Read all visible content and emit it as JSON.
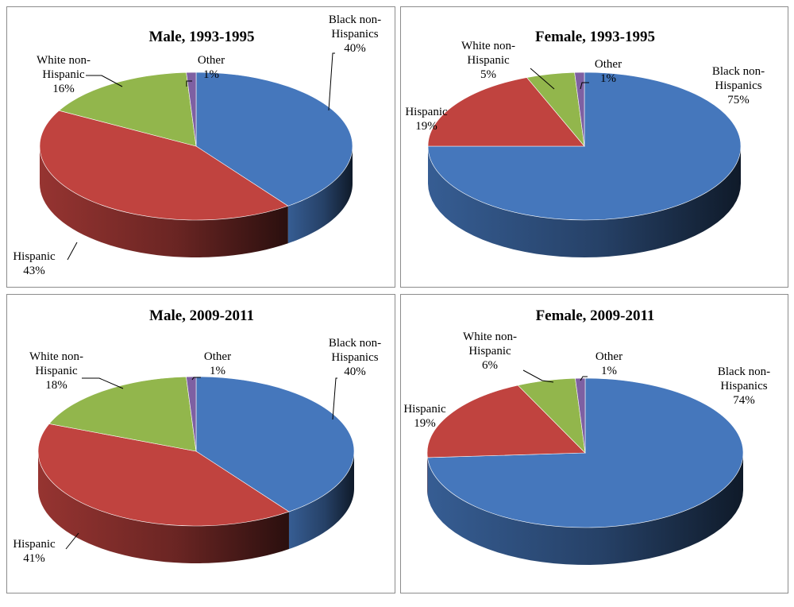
{
  "colors": {
    "Black non-Hispanics": "#4577BC",
    "Hispanic": "#C0433F",
    "White non-Hispanic": "#92B64C",
    "Other": "#7E60A2"
  },
  "chart_data": [
    {
      "type": "pie",
      "title": "Male, 1993-1995",
      "slices": [
        {
          "name": "Black non-Hispanics",
          "label_lines": [
            "Black non-",
            "Hispanics"
          ],
          "value": 40
        },
        {
          "name": "Hispanic",
          "label_lines": [
            "Hispanic"
          ],
          "value": 43
        },
        {
          "name": "White non-Hispanic",
          "label_lines": [
            "White non-",
            "Hispanic"
          ],
          "value": 16
        },
        {
          "name": "Other",
          "label_lines": [
            "Other"
          ],
          "value": 1
        }
      ]
    },
    {
      "type": "pie",
      "title": "Female, 1993-1995",
      "slices": [
        {
          "name": "Black non-Hispanics",
          "label_lines": [
            "Black non-",
            "Hispanics"
          ],
          "value": 75
        },
        {
          "name": "Hispanic",
          "label_lines": [
            "Hispanic"
          ],
          "value": 19
        },
        {
          "name": "White non-Hispanic",
          "label_lines": [
            "White non-",
            "Hispanic"
          ],
          "value": 5
        },
        {
          "name": "Other",
          "label_lines": [
            "Other"
          ],
          "value": 1
        }
      ]
    },
    {
      "type": "pie",
      "title": "Male, 2009-2011",
      "slices": [
        {
          "name": "Black non-Hispanics",
          "label_lines": [
            "Black non-",
            "Hispanics"
          ],
          "value": 40
        },
        {
          "name": "Hispanic",
          "label_lines": [
            "Hispanic"
          ],
          "value": 41
        },
        {
          "name": "White non-Hispanic",
          "label_lines": [
            "White non-",
            "Hispanic"
          ],
          "value": 18
        },
        {
          "name": "Other",
          "label_lines": [
            "Other"
          ],
          "value": 1
        }
      ]
    },
    {
      "type": "pie",
      "title": "Female, 2009-2011",
      "slices": [
        {
          "name": "Black non-Hispanics",
          "label_lines": [
            "Black non-",
            "Hispanics"
          ],
          "value": 74
        },
        {
          "name": "Hispanic",
          "label_lines": [
            "Hispanic"
          ],
          "value": 19
        },
        {
          "name": "White non-Hispanic",
          "label_lines": [
            "White non-",
            "Hispanic"
          ],
          "value": 6
        },
        {
          "name": "Other",
          "label_lines": [
            "Other"
          ],
          "value": 1
        }
      ]
    }
  ]
}
